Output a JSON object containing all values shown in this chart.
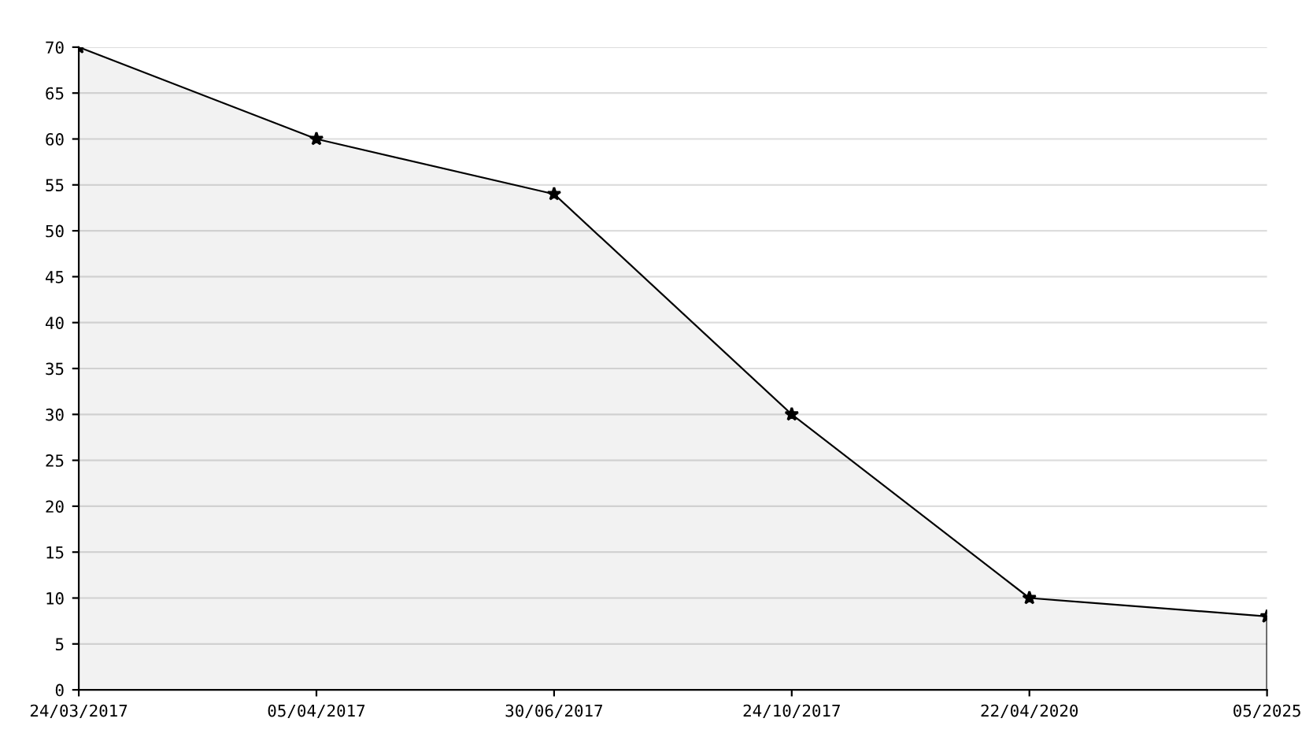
{
  "chart_data": {
    "type": "area",
    "categories": [
      "24/03/2017",
      "05/04/2017",
      "30/06/2017",
      "24/10/2017",
      "22/04/2020",
      "05/2025"
    ],
    "series": [
      {
        "color": "#000000",
        "values": [
          70,
          60,
          54,
          30,
          10,
          8
        ]
      }
    ],
    "ylim": [
      0,
      70
    ],
    "yticks": [
      0,
      5,
      10,
      15,
      20,
      25,
      30,
      35,
      40,
      45,
      50,
      55,
      60,
      65,
      70
    ],
    "grid": "y",
    "marker": "star",
    "line_style": "solid",
    "legend": false
  }
}
